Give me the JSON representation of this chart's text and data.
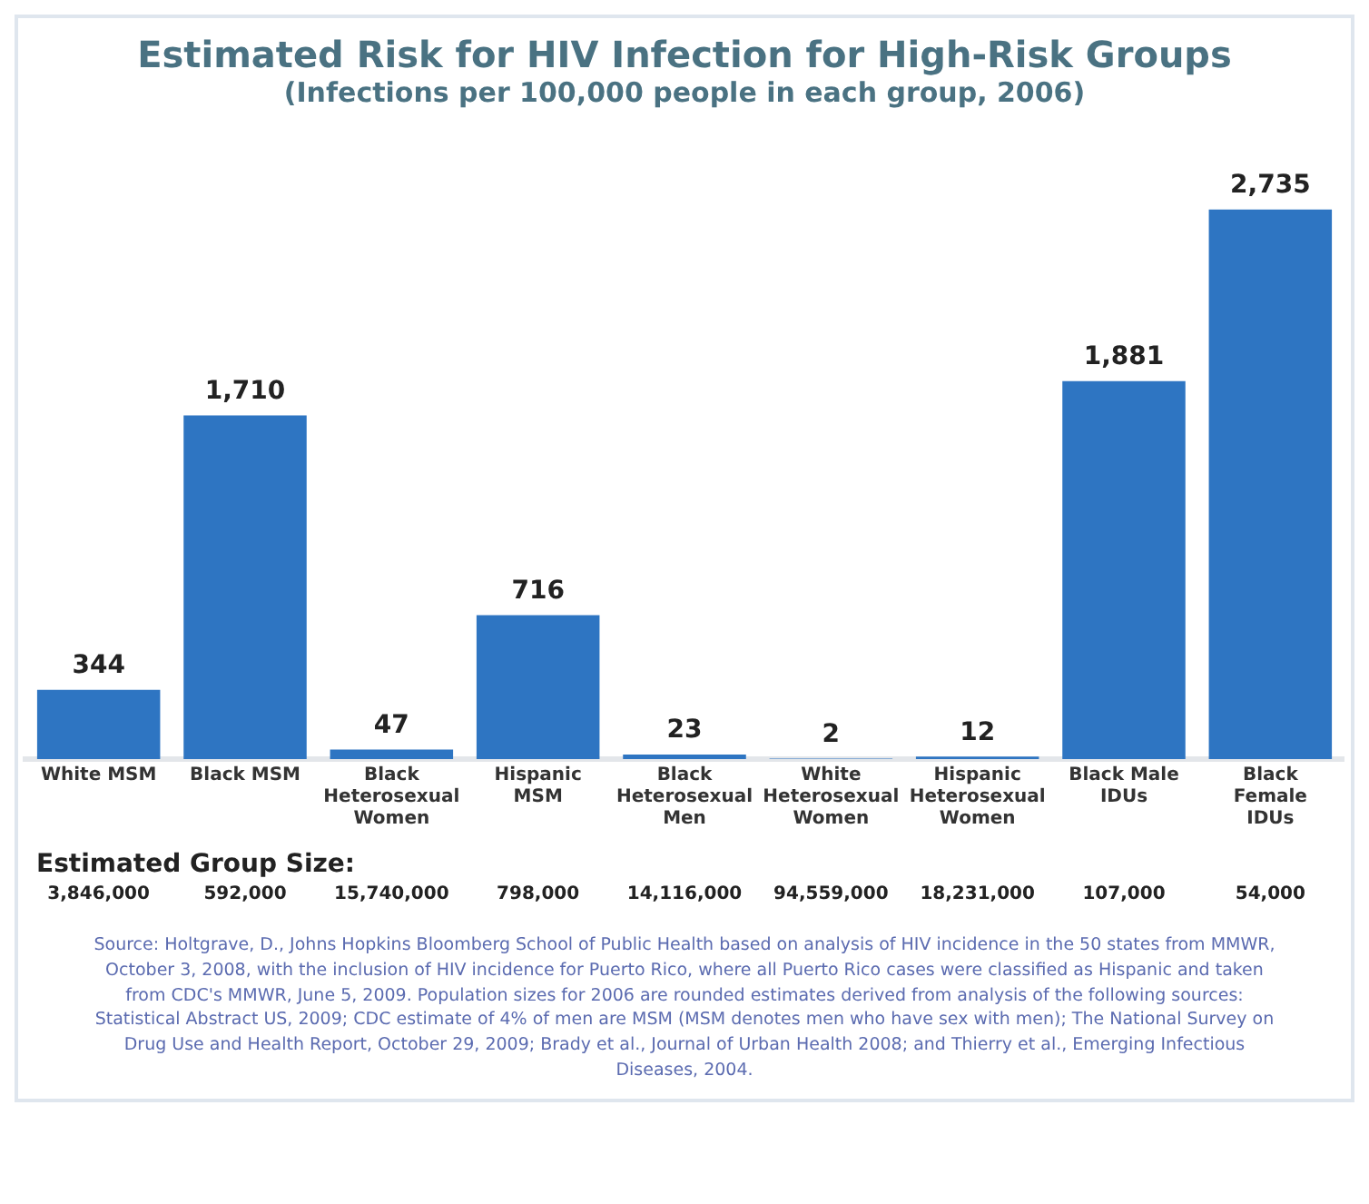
{
  "chart_data": {
    "type": "bar",
    "title": "Estimated Risk for HIV Infection for High-Risk Groups",
    "subtitle": "(Infections per 100,000 people in each group, 2006)",
    "categories": [
      "White MSM",
      "Black MSM",
      "Black Heterosexual Women",
      "Hispanic MSM",
      "Black Heterosexual Men",
      "White Heterosexual Women",
      "Hispanic Heterosexual Women",
      "Black Male IDUs",
      "Black Female IDUs"
    ],
    "values": [
      344,
      1710,
      47,
      716,
      23,
      2,
      12,
      1881,
      2735
    ],
    "value_labels": [
      "344",
      "1,710",
      "47",
      "716",
      "23",
      "2",
      "12",
      "1,881",
      "2,735"
    ],
    "color": "#2e75c2",
    "tick_labels": "x",
    "grid": false,
    "legend": false,
    "annotations": [
      "Estimated Group Size:",
      "3,846,000",
      "592,000",
      "15,740,000",
      "798,000",
      "14,116,000",
      "94,559,000",
      "18,231,000",
      "107,000",
      "54,000",
      "Source: Holtgrave, D., Johns Hopkins Bloomberg School of Public Health based on analysis of HIV incidence in the 50 states from MMWR, October 3, 2008, with the inclusion of HIV incidence for Puerto Rico, where all Puerto Rico cases were classified as Hispanic and taken from CDC's MMWR, June 5, 2009. Population sizes for 2006 are rounded estimates derived from analysis of the following sources: Statistical Abstract US, 2009; CDC estimate of 4% of men are MSM (MSM denotes men who have sex with men); The National Survey on Drug Use and Health Report, October 29, 2009; Brady et al., Journal of Urban Health 2008; and Thierry et al., Emerging Infectious Diseases, 2004."
    ]
  }
}
